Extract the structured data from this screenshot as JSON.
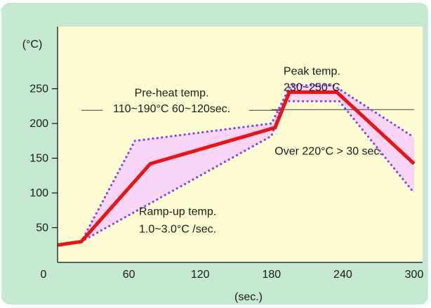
{
  "chart_data": {
    "type": "line",
    "title": "",
    "xlabel": "(sec.)",
    "ylabel": "(°C)",
    "xlim": [
      0,
      300
    ],
    "ylim": [
      0,
      280
    ],
    "x_ticks": [
      {
        "value": 0,
        "label": "0"
      },
      {
        "value": 60,
        "label": "60"
      },
      {
        "value": 120,
        "label": "120"
      },
      {
        "value": 180,
        "label": "180"
      },
      {
        "value": 240,
        "label": "240"
      },
      {
        "value": 300,
        "label": "300"
      }
    ],
    "y_ticks": [
      {
        "value": 50,
        "label": "50"
      },
      {
        "value": 100,
        "label": "100"
      },
      {
        "value": 150,
        "label": "150"
      },
      {
        "value": 200,
        "label": "200"
      },
      {
        "value": 250,
        "label": "250"
      }
    ],
    "profile_line": {
      "color": "#ee1111",
      "points": [
        [
          0,
          25
        ],
        [
          20,
          30
        ],
        [
          78,
          142
        ],
        [
          183,
          194
        ],
        [
          195,
          245
        ],
        [
          235,
          245
        ],
        [
          300,
          142
        ]
      ]
    },
    "upper_limit": {
      "color": "#7744ff",
      "points": [
        [
          20,
          30
        ],
        [
          65,
          175
        ],
        [
          180,
          200
        ],
        [
          196,
          255
        ],
        [
          232,
          255
        ],
        [
          300,
          180
        ]
      ]
    },
    "lower_limit": {
      "color": "#7744ff",
      "points": [
        [
          20,
          30
        ],
        [
          180,
          182
        ],
        [
          190,
          232
        ],
        [
          237,
          232
        ],
        [
          300,
          100
        ]
      ]
    },
    "band_fill": "#f8d4f6",
    "reference_lines": [
      {
        "y": 219,
        "x_from": 20,
        "x_to": 38
      },
      {
        "y": 219,
        "x_from": 161,
        "x_to": 190
      },
      {
        "y": 220,
        "x_from": 180,
        "x_to": 300
      }
    ],
    "annotations": [
      {
        "id": "peak_title",
        "text": "Peak temp.",
        "x": 214,
        "y": 270
      },
      {
        "id": "peak_range",
        "text": "230~250°C",
        "x": 214,
        "y": 247
      },
      {
        "id": "preheat_title",
        "text": "Pre-heat temp.",
        "x": 96,
        "y": 239
      },
      {
        "id": "preheat_range",
        "text": "110~190°C 60~120sec.",
        "x": 96,
        "y": 216
      },
      {
        "id": "over220",
        "text": "Over 220°C > 30 sec.",
        "x": 228,
        "y": 155
      },
      {
        "id": "ramp_title",
        "text": "Ramp-up temp.",
        "x": 101,
        "y": 68
      },
      {
        "id": "ramp_rate",
        "text": "1.0~3.0°C /sec.",
        "x": 101,
        "y": 43
      }
    ]
  }
}
